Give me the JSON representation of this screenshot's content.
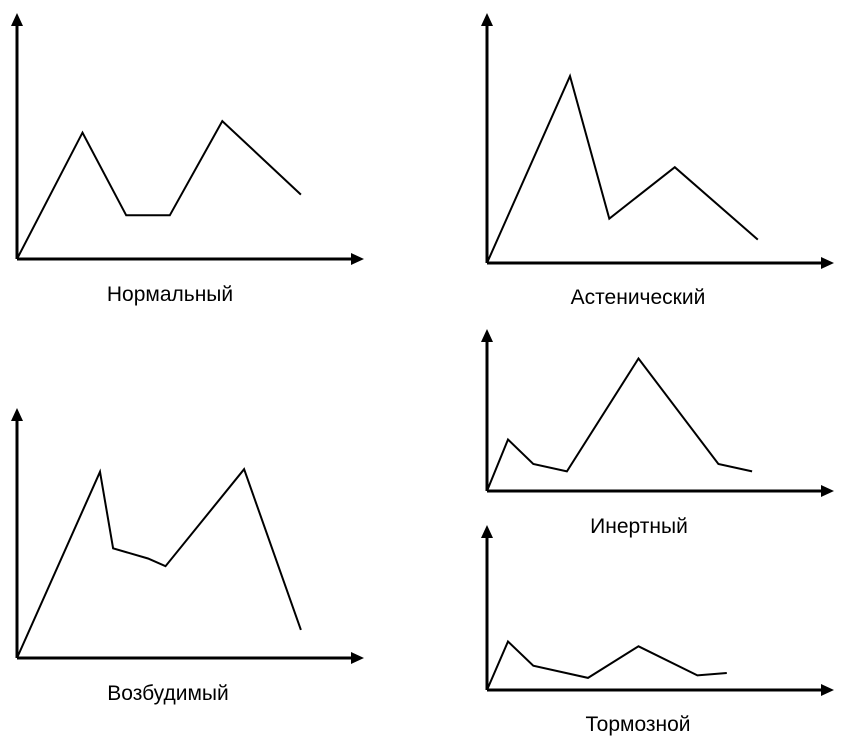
{
  "chart_data": [
    {
      "type": "line",
      "caption": "Нормальный",
      "x": [
        0,
        1.5,
        2.5,
        3.5,
        4.7,
        6.5
      ],
      "y": [
        0,
        5.5,
        1.9,
        1.9,
        6.0,
        2.8
      ],
      "xlim": [
        0,
        7.9
      ],
      "ylim": [
        0,
        10.7
      ],
      "grid": false
    },
    {
      "type": "line",
      "caption": "Астенический",
      "x": [
        0,
        1.9,
        2.8,
        4.3,
        6.2
      ],
      "y": [
        0,
        8.0,
        1.9,
        4.1,
        1.0
      ],
      "xlim": [
        0,
        7.9
      ],
      "ylim": [
        0,
        10.7
      ],
      "grid": false
    },
    {
      "type": "line",
      "caption": "Возбудимый",
      "x": [
        0,
        1.9,
        2.2,
        3.0,
        3.4,
        5.2,
        6.5
      ],
      "y": [
        0,
        7.3,
        4.3,
        3.9,
        3.6,
        7.4,
        1.1
      ],
      "xlim": [
        0,
        7.9
      ],
      "ylim": [
        0,
        9.8
      ],
      "grid": false
    },
    {
      "type": "line",
      "caption": "Инертный",
      "x": [
        0,
        0.5,
        1.1,
        1.9,
        3.6,
        5.5,
        6.3
      ],
      "y": [
        0,
        2.1,
        1.1,
        0.8,
        5.4,
        1.1,
        0.8
      ],
      "xlim": [
        0,
        8.2
      ],
      "ylim": [
        0,
        6.6
      ],
      "grid": false
    },
    {
      "type": "line",
      "caption": "Тормозной",
      "x": [
        0,
        0.5,
        1.1,
        2.4,
        3.6,
        5.0,
        5.7
      ],
      "y": [
        0,
        2.0,
        1.0,
        0.5,
        1.8,
        0.6,
        0.7
      ],
      "xlim": [
        0,
        8.2
      ],
      "ylim": [
        0,
        6.8
      ],
      "grid": false
    }
  ]
}
